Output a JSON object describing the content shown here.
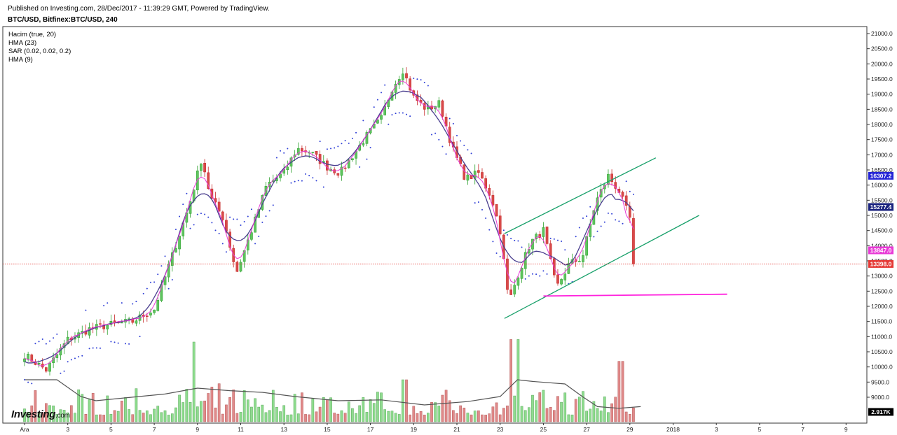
{
  "header": {
    "published": "Published on Investing.com, 28/Dec/2017 - 11:39:29 GMT, Powered by TradingView.",
    "symbol": "BTC/USD, Bitfinex:BTC/USD, 240"
  },
  "legend": [
    "Hacim (true, 20)",
    "HMA (23)",
    "SAR (0.02, 0.02, 0.2)",
    "HMA (9)"
  ],
  "watermark": {
    "brand": "Investing",
    "suffix": ".com"
  },
  "colors": {
    "up": "#2ca02c",
    "up_fill": "#5fc45f",
    "down": "#c62828",
    "down_fill": "#d84a4a",
    "vol_up": "#8fdc8f",
    "vol_down": "#e08a8a",
    "hma23": "#4b3f8f",
    "hma9": "#e83ad6",
    "sar": "#2f3fd6",
    "channel": "#18a06a",
    "support": "#ff22dd",
    "price_line": "#e53935",
    "vol_ma": "#555555"
  },
  "chart_data": {
    "type": "candlestick",
    "x_ticks": [
      "Ara",
      "3",
      "5",
      "7",
      "9",
      "11",
      "13",
      "15",
      "17",
      "19",
      "21",
      "23",
      "25",
      "27",
      "29",
      "2018",
      "3",
      "5",
      "7",
      "9"
    ],
    "y_ticks": [
      9000,
      9500,
      10000,
      10500,
      11000,
      11500,
      12000,
      12500,
      13000,
      13500,
      14000,
      14500,
      15000,
      15500,
      16000,
      16500,
      17000,
      17500,
      18000,
      18500,
      19000,
      19500,
      20000,
      20500,
      21000
    ],
    "y_tick_format": "decimal1",
    "ylim": [
      8200,
      21200
    ],
    "x_range_days": [
      0,
      39.5
    ],
    "price_labels": [
      {
        "text": "16307.2",
        "value": 16307.2,
        "color": "#2424d6"
      },
      {
        "text": "15277.4",
        "value": 15277.4,
        "color": "#1a237e"
      },
      {
        "text": "13847.0",
        "value": 13847.0,
        "color": "#e83ad6"
      },
      {
        "text": "13398.0",
        "value": 13398.0,
        "color": "#e53935"
      },
      {
        "text": "2.917K",
        "value": "volume",
        "color": "#000000"
      }
    ],
    "last_price": 13398.0,
    "anchors_day_close": [
      [
        0,
        10400
      ],
      [
        1,
        9900
      ],
      [
        2,
        10900
      ],
      [
        3,
        11250
      ],
      [
        4,
        11400
      ],
      [
        5,
        11500
      ],
      [
        6,
        11900
      ],
      [
        6.8,
        13600
      ],
      [
        7.6,
        15300
      ],
      [
        8.2,
        16900
      ],
      [
        8.6,
        15600
      ],
      [
        9.2,
        14900
      ],
      [
        9.8,
        13100
      ],
      [
        10.6,
        14700
      ],
      [
        11.2,
        16000
      ],
      [
        12.0,
        16400
      ],
      [
        12.6,
        17200
      ],
      [
        13.2,
        17100
      ],
      [
        14.0,
        16600
      ],
      [
        14.6,
        16400
      ],
      [
        15.2,
        17000
      ],
      [
        15.8,
        17600
      ],
      [
        16.5,
        18200
      ],
      [
        17.0,
        19200
      ],
      [
        17.5,
        19800
      ],
      [
        18.0,
        18900
      ],
      [
        18.6,
        18500
      ],
      [
        19.2,
        18700
      ],
      [
        19.8,
        17200
      ],
      [
        20.4,
        16200
      ],
      [
        21.0,
        16400
      ],
      [
        21.6,
        15600
      ],
      [
        22.0,
        14500
      ],
      [
        22.4,
        12100
      ],
      [
        22.8,
        13000
      ],
      [
        23.4,
        14100
      ],
      [
        24.0,
        14500
      ],
      [
        24.6,
        12600
      ],
      [
        25.2,
        13400
      ],
      [
        25.8,
        13600
      ],
      [
        26.4,
        15400
      ],
      [
        27.0,
        16300
      ],
      [
        27.5,
        15800
      ],
      [
        28.0,
        14900
      ],
      [
        28.3,
        13400
      ]
    ],
    "bars_per_day": 6,
    "volume_max": 100,
    "volume_spikes": [
      {
        "day": 7.8,
        "value": 95
      },
      {
        "day": 17.6,
        "value": 50
      },
      {
        "day": 22.5,
        "value": 98
      },
      {
        "day": 22.8,
        "value": 98
      },
      {
        "day": 27.6,
        "value": 72
      }
    ],
    "channel_upper": [
      [
        22.2,
        14400
      ],
      [
        29.2,
        16900
      ]
    ],
    "channel_lower": [
      [
        22.2,
        11600
      ],
      [
        31.2,
        15000
      ]
    ],
    "support_line": [
      [
        24.0,
        12340
      ],
      [
        32.5,
        12400
      ]
    ],
    "volume_ma_points": [
      [
        0,
        50
      ],
      [
        1.5,
        50
      ],
      [
        2.6,
        30
      ],
      [
        3.3,
        25
      ],
      [
        4.5,
        28
      ],
      [
        6.5,
        33
      ],
      [
        8.0,
        40
      ],
      [
        9.5,
        37
      ],
      [
        11.0,
        35
      ],
      [
        12.5,
        30
      ],
      [
        14.5,
        25
      ],
      [
        16.5,
        26
      ],
      [
        18.5,
        20
      ],
      [
        20.5,
        24
      ],
      [
        22.0,
        30
      ],
      [
        22.8,
        50
      ],
      [
        23.5,
        48
      ],
      [
        25.0,
        45
      ],
      [
        25.8,
        30
      ],
      [
        26.5,
        18
      ],
      [
        27.5,
        16
      ],
      [
        28.5,
        18
      ]
    ]
  }
}
